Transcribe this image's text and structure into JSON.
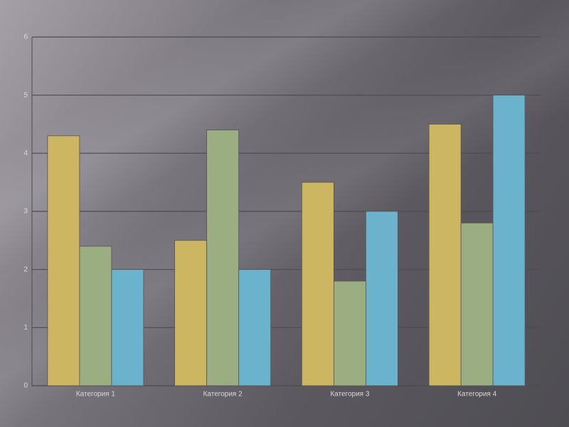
{
  "chart_data": {
    "type": "bar",
    "categories": [
      "Категория 1",
      "Категория 2",
      "Категория 3",
      "Категория 4"
    ],
    "series": [
      {
        "color": "#cdb661",
        "values": [
          4.3,
          2.5,
          3.5,
          4.5
        ]
      },
      {
        "color": "#9bae81",
        "values": [
          2.4,
          4.4,
          1.8,
          2.8
        ]
      },
      {
        "color": "#6bb3cd",
        "values": [
          2,
          2,
          3,
          5
        ]
      }
    ],
    "ylim": [
      0,
      6
    ],
    "yticks": [
      0,
      1,
      2,
      3,
      4,
      5,
      6
    ],
    "grid": true
  }
}
